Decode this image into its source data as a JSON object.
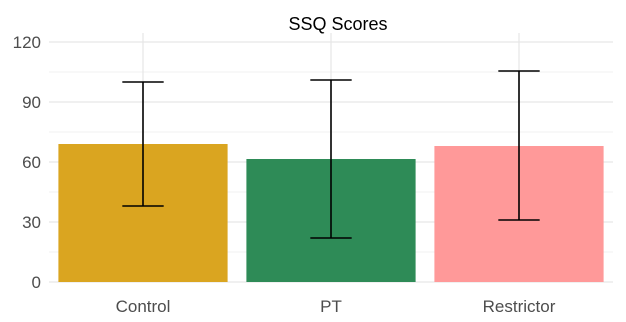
{
  "chart_data": {
    "type": "bar",
    "title": "SSQ Scores",
    "xlabel": "",
    "ylabel": "",
    "categories": [
      "Control",
      "PT",
      "Restrictor"
    ],
    "values": [
      69,
      61.5,
      68
    ],
    "error_low": [
      38,
      22,
      31
    ],
    "error_high": [
      100,
      101,
      105.5
    ],
    "colors": [
      "#DAA520",
      "#2E8B57",
      "#FF9999"
    ],
    "ylim": [
      0,
      120
    ],
    "yticks": [
      0,
      30,
      60,
      90,
      120
    ],
    "grid": true,
    "legend": "none"
  }
}
